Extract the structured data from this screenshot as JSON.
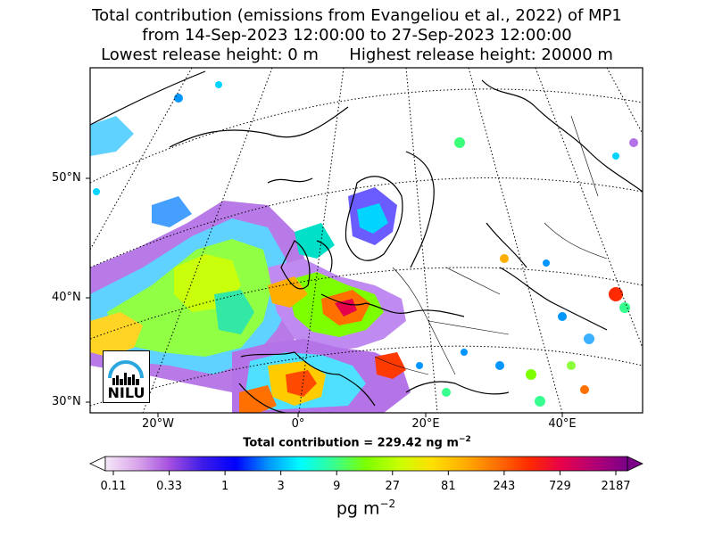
{
  "title": {
    "line1": "Total contribution (emissions from Evangeliou et al., 2022) of MP1",
    "line2": "from 14-Sep-2023 12:00:00 to 27-Sep-2023 12:00:00",
    "line3": "Lowest release height: 0 m      Highest release height: 20000 m"
  },
  "axes": {
    "lat_labels": [
      "50°N",
      "40°N",
      "30°N"
    ],
    "lon_labels": [
      "20°W",
      "0°",
      "20°E",
      "40°E"
    ]
  },
  "total_label": "Total contribution = 229.42 ng m",
  "total_label_exp": "−2",
  "colorbar": {
    "ticks": [
      "0.11",
      "0.33",
      "1",
      "3",
      "9",
      "27",
      "81",
      "243",
      "729",
      "2187"
    ],
    "unit": "pg m",
    "unit_exp": "−2",
    "colors": [
      "#f6e8f8",
      "#d9a4ea",
      "#a24de0",
      "#3b1be8",
      "#0000ff",
      "#0096ff",
      "#00ffff",
      "#37ff8f",
      "#7dff00",
      "#c8ff00",
      "#ffe000",
      "#ffae00",
      "#ff7000",
      "#ff2a00",
      "#e6004b",
      "#b20076",
      "#7a0088"
    ]
  },
  "logo": {
    "text": "NILU",
    "color": "#2aa7df"
  }
}
